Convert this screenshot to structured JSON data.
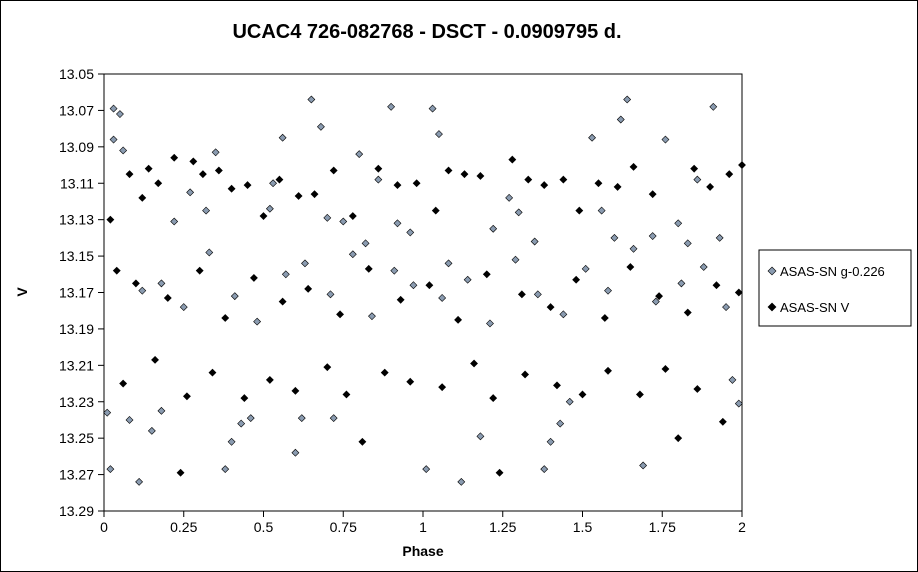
{
  "chart_data": {
    "type": "scatter",
    "title": "UCAC4 726-082768  - DSCT - 0.0909795  d.",
    "xlabel": "Phase",
    "ylabel": "V",
    "xlim": [
      0,
      2
    ],
    "ylim": [
      13.29,
      13.05
    ],
    "y_inverted": true,
    "x_ticks": [
      "0",
      "0.25",
      "0.5",
      "0.75",
      "1",
      "1.25",
      "1.5",
      "1.75",
      "2"
    ],
    "y_ticks": [
      "13.05",
      "13.07",
      "13.09",
      "13.11",
      "13.13",
      "13.15",
      "13.17",
      "13.19",
      "13.21",
      "13.23",
      "13.25",
      "13.27",
      "13.29"
    ],
    "grid": false,
    "legend_position": "right",
    "series": [
      {
        "name": "ASAS-SN g-0.226",
        "color": "#8a9bb0",
        "marker": "diamond",
        "points": [
          [
            0.01,
            13.236
          ],
          [
            0.02,
            13.267
          ],
          [
            0.03,
            13.069
          ],
          [
            0.05,
            13.072
          ],
          [
            0.03,
            13.086
          ],
          [
            0.06,
            13.092
          ],
          [
            0.11,
            13.274
          ],
          [
            0.08,
            13.24
          ],
          [
            0.15,
            13.246
          ],
          [
            0.18,
            13.235
          ],
          [
            0.22,
            13.131
          ],
          [
            0.27,
            13.115
          ],
          [
            0.32,
            13.125
          ],
          [
            0.35,
            13.093
          ],
          [
            0.38,
            13.267
          ],
          [
            0.4,
            13.252
          ],
          [
            0.43,
            13.242
          ],
          [
            0.46,
            13.239
          ],
          [
            0.52,
            13.124
          ],
          [
            0.53,
            13.11
          ],
          [
            0.56,
            13.085
          ],
          [
            0.6,
            13.258
          ],
          [
            0.62,
            13.239
          ],
          [
            0.65,
            13.064
          ],
          [
            0.68,
            13.079
          ],
          [
            0.7,
            13.129
          ],
          [
            0.72,
            13.239
          ],
          [
            0.75,
            13.131
          ],
          [
            0.8,
            13.094
          ],
          [
            0.82,
            13.143
          ],
          [
            0.86,
            13.108
          ],
          [
            0.9,
            13.068
          ],
          [
            0.92,
            13.132
          ],
          [
            0.96,
            13.137
          ],
          [
            1.01,
            13.267
          ],
          [
            1.03,
            13.069
          ],
          [
            1.05,
            13.083
          ],
          [
            1.08,
            13.154
          ],
          [
            1.12,
            13.274
          ],
          [
            1.18,
            13.249
          ],
          [
            1.22,
            13.135
          ],
          [
            1.27,
            13.118
          ],
          [
            1.3,
            13.126
          ],
          [
            1.35,
            13.142
          ],
          [
            1.38,
            13.267
          ],
          [
            1.4,
            13.252
          ],
          [
            1.43,
            13.242
          ],
          [
            1.46,
            13.23
          ],
          [
            1.53,
            13.085
          ],
          [
            1.56,
            13.125
          ],
          [
            1.6,
            13.14
          ],
          [
            1.62,
            13.075
          ],
          [
            1.64,
            13.064
          ],
          [
            1.69,
            13.265
          ],
          [
            1.72,
            13.139
          ],
          [
            1.76,
            13.086
          ],
          [
            1.8,
            13.132
          ],
          [
            1.83,
            13.143
          ],
          [
            1.86,
            13.108
          ],
          [
            1.91,
            13.068
          ],
          [
            1.93,
            13.14
          ],
          [
            1.97,
            13.218
          ],
          [
            1.99,
            13.231
          ],
          [
            0.12,
            13.169
          ],
          [
            0.18,
            13.165
          ],
          [
            0.25,
            13.178
          ],
          [
            0.33,
            13.148
          ],
          [
            0.41,
            13.172
          ],
          [
            0.48,
            13.186
          ],
          [
            0.57,
            13.16
          ],
          [
            0.63,
            13.154
          ],
          [
            0.71,
            13.171
          ],
          [
            0.78,
            13.149
          ],
          [
            0.84,
            13.183
          ],
          [
            0.91,
            13.158
          ],
          [
            0.97,
            13.166
          ],
          [
            1.06,
            13.173
          ],
          [
            1.14,
            13.163
          ],
          [
            1.21,
            13.187
          ],
          [
            1.29,
            13.152
          ],
          [
            1.36,
            13.171
          ],
          [
            1.44,
            13.182
          ],
          [
            1.51,
            13.157
          ],
          [
            1.58,
            13.169
          ],
          [
            1.66,
            13.146
          ],
          [
            1.73,
            13.175
          ],
          [
            1.81,
            13.165
          ],
          [
            1.88,
            13.156
          ],
          [
            1.95,
            13.178
          ]
        ]
      },
      {
        "name": "ASAS-SN V",
        "color": "#000000",
        "marker": "diamond",
        "points": [
          [
            0.02,
            13.13
          ],
          [
            0.04,
            13.158
          ],
          [
            0.08,
            13.105
          ],
          [
            0.12,
            13.118
          ],
          [
            0.14,
            13.102
          ],
          [
            0.17,
            13.11
          ],
          [
            0.22,
            13.096
          ],
          [
            0.24,
            13.269
          ],
          [
            0.28,
            13.098
          ],
          [
            0.31,
            13.105
          ],
          [
            0.36,
            13.103
          ],
          [
            0.4,
            13.113
          ],
          [
            0.45,
            13.111
          ],
          [
            0.5,
            13.128
          ],
          [
            0.55,
            13.108
          ],
          [
            0.61,
            13.117
          ],
          [
            0.66,
            13.116
          ],
          [
            0.72,
            13.103
          ],
          [
            0.78,
            13.128
          ],
          [
            0.81,
            13.252
          ],
          [
            0.86,
            13.102
          ],
          [
            0.92,
            13.111
          ],
          [
            0.98,
            13.11
          ],
          [
            1.04,
            13.125
          ],
          [
            1.08,
            13.103
          ],
          [
            1.13,
            13.105
          ],
          [
            1.18,
            13.106
          ],
          [
            1.24,
            13.269
          ],
          [
            1.28,
            13.097
          ],
          [
            1.33,
            13.108
          ],
          [
            1.38,
            13.111
          ],
          [
            1.44,
            13.108
          ],
          [
            1.49,
            13.125
          ],
          [
            1.55,
            13.11
          ],
          [
            1.61,
            13.112
          ],
          [
            1.66,
            13.101
          ],
          [
            1.72,
            13.116
          ],
          [
            1.8,
            13.25
          ],
          [
            1.85,
            13.102
          ],
          [
            1.9,
            13.112
          ],
          [
            1.96,
            13.105
          ],
          [
            2.0,
            13.1
          ],
          [
            0.06,
            13.22
          ],
          [
            0.16,
            13.207
          ],
          [
            0.26,
            13.227
          ],
          [
            0.34,
            13.214
          ],
          [
            0.44,
            13.228
          ],
          [
            0.52,
            13.218
          ],
          [
            0.6,
            13.224
          ],
          [
            0.7,
            13.211
          ],
          [
            0.76,
            13.226
          ],
          [
            0.88,
            13.214
          ],
          [
            0.96,
            13.219
          ],
          [
            1.06,
            13.222
          ],
          [
            1.16,
            13.209
          ],
          [
            1.22,
            13.228
          ],
          [
            1.32,
            13.215
          ],
          [
            1.42,
            13.221
          ],
          [
            1.5,
            13.226
          ],
          [
            1.58,
            13.213
          ],
          [
            1.68,
            13.226
          ],
          [
            1.76,
            13.212
          ],
          [
            1.86,
            13.223
          ],
          [
            1.94,
            13.241
          ],
          [
            0.1,
            13.165
          ],
          [
            0.2,
            13.173
          ],
          [
            0.3,
            13.158
          ],
          [
            0.38,
            13.184
          ],
          [
            0.47,
            13.162
          ],
          [
            0.56,
            13.175
          ],
          [
            0.64,
            13.168
          ],
          [
            0.74,
            13.182
          ],
          [
            0.83,
            13.157
          ],
          [
            0.93,
            13.174
          ],
          [
            1.02,
            13.166
          ],
          [
            1.11,
            13.185
          ],
          [
            1.2,
            13.16
          ],
          [
            1.31,
            13.171
          ],
          [
            1.4,
            13.178
          ],
          [
            1.48,
            13.163
          ],
          [
            1.57,
            13.184
          ],
          [
            1.65,
            13.156
          ],
          [
            1.74,
            13.172
          ],
          [
            1.83,
            13.181
          ],
          [
            1.92,
            13.166
          ],
          [
            1.99,
            13.17
          ]
        ]
      }
    ]
  }
}
